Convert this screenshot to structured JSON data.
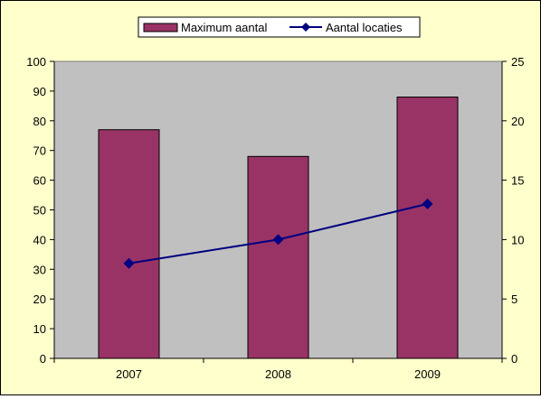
{
  "chart_data": {
    "type": "bar+line",
    "categories": [
      "2007",
      "2008",
      "2009"
    ],
    "series": [
      {
        "name": "Maximum aantal",
        "type": "bar",
        "axis": "left",
        "values": [
          77,
          68,
          88
        ],
        "color": "#993366"
      },
      {
        "name": "Aantal locaties",
        "type": "line",
        "axis": "right",
        "values": [
          8,
          10,
          13
        ],
        "color": "#000080",
        "marker": "diamond"
      }
    ],
    "y_left": {
      "min": 0,
      "max": 100,
      "step": 10
    },
    "y_right": {
      "min": 0,
      "max": 25,
      "step": 5
    },
    "plot_background": "#C0C0C0",
    "chart_background": "#FFFFCC",
    "grid": false,
    "legend_position": "top"
  }
}
